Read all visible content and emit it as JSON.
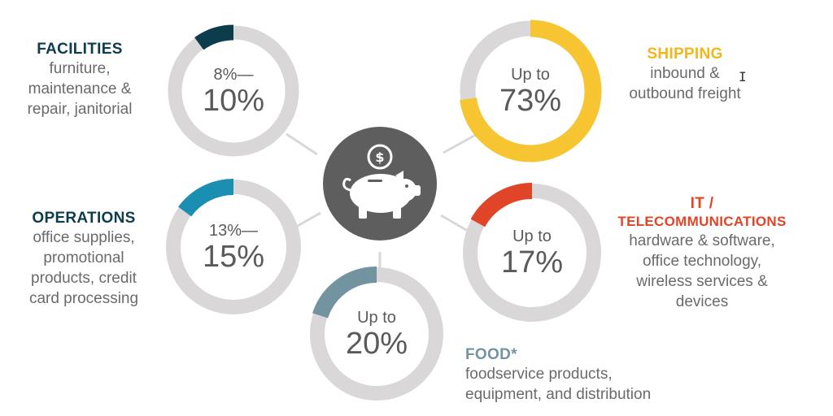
{
  "center": {
    "icon": "piggy-bank-coin-icon"
  },
  "ring_track_color": "#d9d7d7",
  "categories": [
    {
      "id": "facilities",
      "title": "FACILITIES",
      "title_lines": [],
      "desc_lines": [
        "furniture,",
        "maintenance &",
        "repair, janitorial"
      ],
      "top_text": "8%—",
      "main_text": "10%",
      "fraction": 0.1,
      "color": "#0d3c4c"
    },
    {
      "id": "shipping",
      "title": "SHIPPING",
      "title_lines": [],
      "desc_lines": [
        "inbound &",
        "outbound freight"
      ],
      "top_text": "Up to",
      "main_text": "73%",
      "fraction": 0.73,
      "color": "#f7c531"
    },
    {
      "id": "operations",
      "title": "OPERATIONS",
      "title_lines": [],
      "desc_lines": [
        "office supplies,",
        "promotional",
        "products, credit",
        "card processing"
      ],
      "top_text": "13%—",
      "main_text": "15%",
      "fraction": 0.15,
      "color": "#1b8fb2"
    },
    {
      "id": "it",
      "title": "",
      "title_lines": [
        "IT /",
        "TELECOMMUNICATIONS"
      ],
      "desc_lines": [
        "hardware & software,",
        "office technology,",
        "wireless services &",
        "devices"
      ],
      "top_text": "Up to",
      "main_text": "17%",
      "fraction": 0.17,
      "color": "#e04527"
    },
    {
      "id": "food",
      "title": "FOOD*",
      "title_lines": [],
      "desc_lines": [
        "foodservice products,",
        "equipment, and distribution"
      ],
      "top_text": "Up to",
      "main_text": "20%",
      "fraction": 0.2,
      "color": "#7294a0"
    }
  ]
}
